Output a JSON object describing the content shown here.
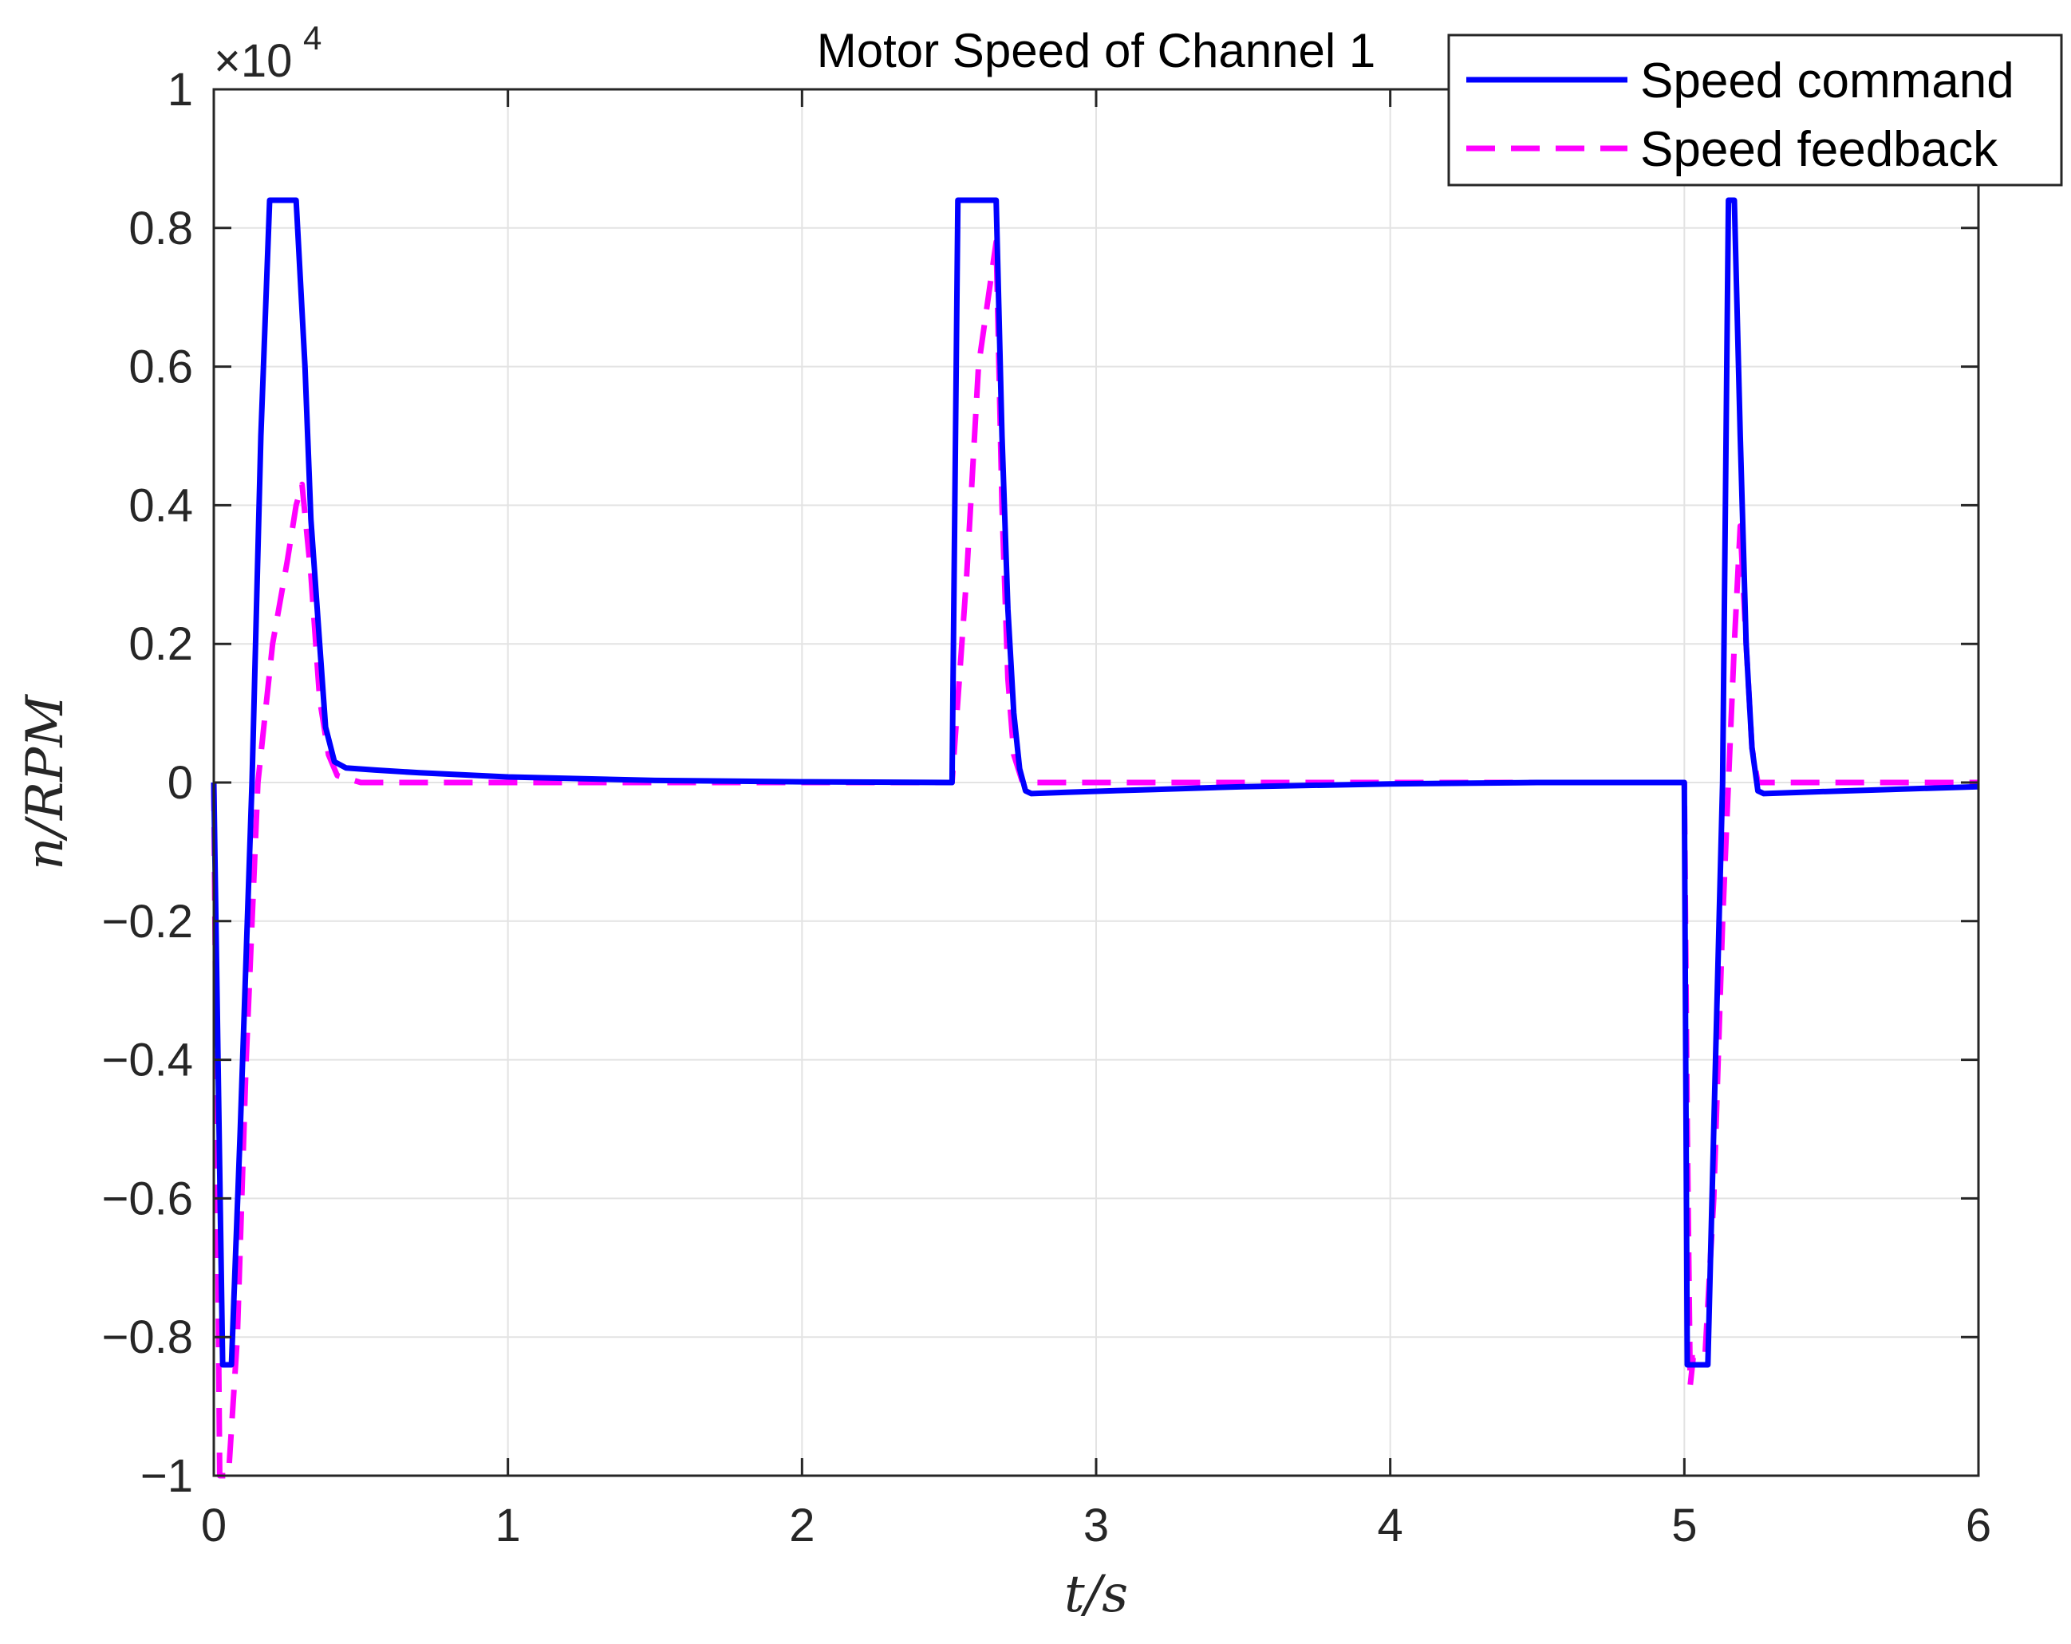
{
  "chart_data": {
    "type": "line",
    "title": "Motor Speed of Channel 1",
    "xlabel": "t/s",
    "ylabel": "n/RPM",
    "y_exponent": "4",
    "xlim": [
      0,
      6
    ],
    "ylim": [
      -1,
      1
    ],
    "x_ticks": [
      "0",
      "1",
      "2",
      "3",
      "4",
      "5",
      "6"
    ],
    "y_ticks": [
      "−1",
      "−0.8",
      "−0.6",
      "−0.4",
      "−0.2",
      "0",
      "0.2",
      "0.4",
      "0.6",
      "0.8",
      "1"
    ],
    "grid": true,
    "legend_position": "top-right",
    "series": [
      {
        "name": "Speed command",
        "color": "#0000ff",
        "style": "solid",
        "points": [
          [
            0,
            0
          ],
          [
            0.03,
            -0.84
          ],
          [
            0.06,
            -0.84
          ],
          [
            0.09,
            -0.5
          ],
          [
            0.13,
            0.0
          ],
          [
            0.16,
            0.5
          ],
          [
            0.19,
            0.84
          ],
          [
            0.24,
            0.84
          ],
          [
            0.28,
            0.84
          ],
          [
            0.31,
            0.6
          ],
          [
            0.33,
            0.38
          ],
          [
            0.36,
            0.2
          ],
          [
            0.38,
            0.08
          ],
          [
            0.41,
            0.03
          ],
          [
            0.45,
            0.021
          ],
          [
            0.55,
            0.018
          ],
          [
            0.7,
            0.014
          ],
          [
            1.0,
            0.008
          ],
          [
            1.5,
            0.003
          ],
          [
            2.0,
            0.001
          ],
          [
            2.5,
            0.0
          ],
          [
            2.51,
            0.0
          ],
          [
            2.53,
            0.84
          ],
          [
            2.66,
            0.84
          ],
          [
            2.68,
            0.5
          ],
          [
            2.7,
            0.25
          ],
          [
            2.72,
            0.1
          ],
          [
            2.74,
            0.02
          ],
          [
            2.76,
            -0.012
          ],
          [
            2.78,
            -0.016
          ],
          [
            2.9,
            -0.014
          ],
          [
            3.2,
            -0.01
          ],
          [
            3.5,
            -0.006
          ],
          [
            4.0,
            -0.002
          ],
          [
            4.5,
            0.0
          ],
          [
            5.0,
            0.0
          ],
          [
            5.01,
            -0.84
          ],
          [
            5.08,
            -0.84
          ],
          [
            5.1,
            -0.5
          ],
          [
            5.13,
            0.0
          ],
          [
            5.15,
            0.84
          ],
          [
            5.17,
            0.84
          ],
          [
            5.19,
            0.5
          ],
          [
            5.21,
            0.2
          ],
          [
            5.23,
            0.05
          ],
          [
            5.25,
            -0.012
          ],
          [
            5.27,
            -0.016
          ],
          [
            5.4,
            -0.014
          ],
          [
            5.7,
            -0.01
          ],
          [
            6.0,
            -0.006
          ]
        ]
      },
      {
        "name": "Speed feedback",
        "color": "#ff00ff",
        "style": "dashed",
        "points": [
          [
            0,
            0
          ],
          [
            0.01,
            -0.5
          ],
          [
            0.02,
            -1.0
          ],
          [
            0.05,
            -1.0
          ],
          [
            0.08,
            -0.8
          ],
          [
            0.11,
            -0.4
          ],
          [
            0.15,
            0.0
          ],
          [
            0.2,
            0.2
          ],
          [
            0.25,
            0.32
          ],
          [
            0.28,
            0.4
          ],
          [
            0.3,
            0.43
          ],
          [
            0.33,
            0.3
          ],
          [
            0.36,
            0.12
          ],
          [
            0.39,
            0.04
          ],
          [
            0.42,
            0.01
          ],
          [
            0.5,
            0.0
          ],
          [
            1.0,
            0.0
          ],
          [
            2.0,
            0.0
          ],
          [
            2.5,
            0.0
          ],
          [
            2.51,
            0.0
          ],
          [
            2.56,
            0.3
          ],
          [
            2.6,
            0.6
          ],
          [
            2.64,
            0.72
          ],
          [
            2.66,
            0.78
          ],
          [
            2.68,
            0.4
          ],
          [
            2.7,
            0.15
          ],
          [
            2.72,
            0.04
          ],
          [
            2.75,
            0.0
          ],
          [
            3.0,
            0.0
          ],
          [
            4.0,
            0.0
          ],
          [
            5.0,
            0.0
          ],
          [
            5.01,
            -0.5
          ],
          [
            5.02,
            -0.87
          ],
          [
            5.03,
            -0.83
          ],
          [
            5.07,
            -0.83
          ],
          [
            5.1,
            -0.6
          ],
          [
            5.13,
            -0.2
          ],
          [
            5.15,
            0.0
          ],
          [
            5.17,
            0.2
          ],
          [
            5.19,
            0.37
          ],
          [
            5.21,
            0.2
          ],
          [
            5.23,
            0.05
          ],
          [
            5.25,
            0.0
          ],
          [
            6.0,
            0.0
          ]
        ]
      }
    ]
  }
}
